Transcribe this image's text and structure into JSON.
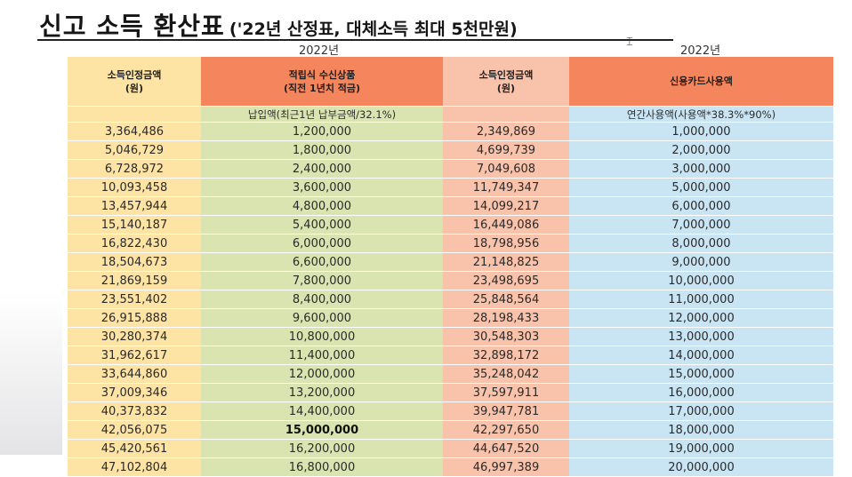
{
  "title": {
    "main": "신고 소득 환산표",
    "sub": "('22년 산정표, 대체소득 최대 5천만원)"
  },
  "years": {
    "left": "2022년",
    "right": "2022년"
  },
  "headers": {
    "col1": {
      "line1": "소득인정금액",
      "line2": "(원)"
    },
    "col2": {
      "line1": "적립식 수신상품",
      "line2": "(직전 1년치 적금)"
    },
    "col3": {
      "line1": "소득인정금액",
      "line2": "(원)"
    },
    "col4": {
      "line1": "신용카드사용액",
      "line2": ""
    }
  },
  "subheaders": {
    "col2": "납입액(최근1년 납부금액/32.1%)",
    "col4": "연간사용액(사용액*38.3%*90%)"
  },
  "rows": [
    [
      "3,364,486",
      "1,200,000",
      "2,349,869",
      "1,000,000"
    ],
    [
      "5,046,729",
      "1,800,000",
      "4,699,739",
      "2,000,000"
    ],
    [
      "6,728,972",
      "2,400,000",
      "7,049,608",
      "3,000,000"
    ],
    [
      "10,093,458",
      "3,600,000",
      "11,749,347",
      "5,000,000"
    ],
    [
      "13,457,944",
      "4,800,000",
      "14,099,217",
      "6,000,000"
    ],
    [
      "15,140,187",
      "5,400,000",
      "16,449,086",
      "7,000,000"
    ],
    [
      "16,822,430",
      "6,000,000",
      "18,798,956",
      "8,000,000"
    ],
    [
      "18,504,673",
      "6,600,000",
      "21,148,825",
      "9,000,000"
    ],
    [
      "21,869,159",
      "7,800,000",
      "23,498,695",
      "10,000,000"
    ],
    [
      "23,551,402",
      "8,400,000",
      "25,848,564",
      "11,000,000"
    ],
    [
      "26,915,888",
      "9,600,000",
      "28,198,433",
      "12,000,000"
    ],
    [
      "30,280,374",
      "10,800,000",
      "30,548,303",
      "13,000,000"
    ],
    [
      "31,962,617",
      "11,400,000",
      "32,898,172",
      "14,000,000"
    ],
    [
      "33,644,860",
      "12,000,000",
      "35,248,042",
      "15,000,000"
    ],
    [
      "37,009,346",
      "13,200,000",
      "37,597,911",
      "16,000,000"
    ],
    [
      "40,373,832",
      "14,400,000",
      "39,947,781",
      "17,000,000"
    ],
    [
      "42,056,075",
      "15,000,000",
      "42,297,650",
      "18,000,000"
    ],
    [
      "45,420,561",
      "16,200,000",
      "44,647,520",
      "19,000,000"
    ],
    [
      "47,102,804",
      "16,800,000",
      "46,997,389",
      "20,000,000"
    ]
  ],
  "highlight": {
    "row": 16,
    "col": 1
  }
}
